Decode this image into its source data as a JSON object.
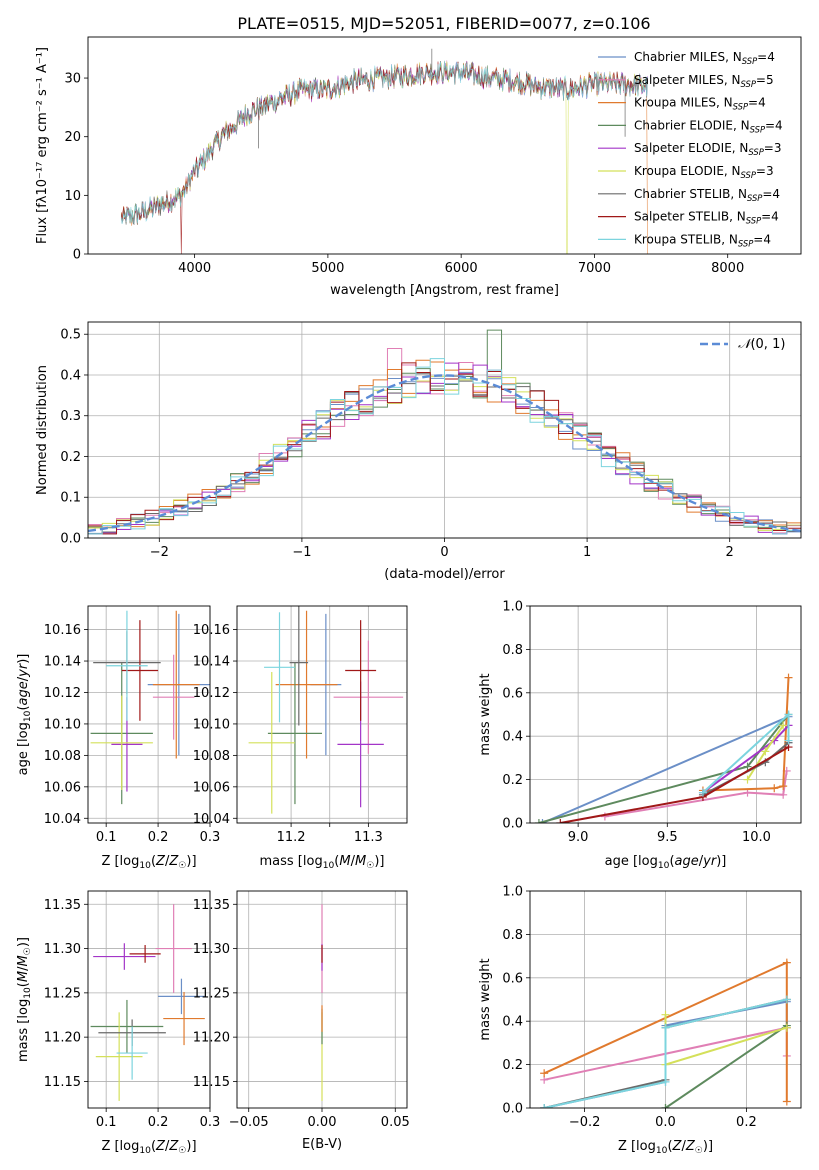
{
  "title": "PLATE=0515, MJD=52051, FIBERID=0077, z=0.106",
  "colors": {
    "Chabrier MILES": "#6b8fc7",
    "Salpeter MILES": "#e07fb5",
    "Kroupa MILES": "#e07a2e",
    "Chabrier ELODIE": "#5e8a5e",
    "Salpeter ELODIE": "#a335c8",
    "Kroupa ELODIE": "#d4e05a",
    "Chabrier STELIB": "#6a6a6a",
    "Salpeter STELIB": "#a01818",
    "Kroupa STELIB": "#7cd4de",
    "normal": "#5b8bd6"
  },
  "chart_data": [
    {
      "id": "spectrum",
      "type": "line",
      "xlabel": "wavelength [Angstrom, rest frame]",
      "ylabel": "Flux [fλ10⁻¹⁷ erg cm⁻² s⁻¹ A⁻¹]",
      "xlim": [
        3200,
        8550
      ],
      "ylim": [
        0,
        37
      ],
      "xticks": [
        4000,
        5000,
        6000,
        7000,
        8000
      ],
      "yticks": [
        0,
        10,
        20,
        30
      ],
      "legend_position": "top-right",
      "series": [
        {
          "name": "Chabrier MILES, N_SSP=4"
        },
        {
          "name": "Salpeter MILES, N_SSP=5"
        },
        {
          "name": "Kroupa MILES, N_SSP=4"
        },
        {
          "name": "Chabrier ELODIE, N_SSP=4"
        },
        {
          "name": "Salpeter ELODIE, N_SSP=3"
        },
        {
          "name": "Kroupa ELODIE, N_SSP=3"
        },
        {
          "name": "Chabrier STELIB, N_SSP=4"
        },
        {
          "name": "Salpeter STELIB, N_SSP=4"
        },
        {
          "name": "Kroupa STELIB, N_SSP=4"
        }
      ],
      "continuum": {
        "x": [
          3450,
          3600,
          3800,
          3900,
          4000,
          4200,
          4400,
          4600,
          4800,
          5000,
          5200,
          5400,
          5600,
          5800,
          6000,
          6200,
          6400,
          6600,
          6800,
          7000,
          7200,
          7400
        ],
        "y": [
          6,
          7,
          9,
          10,
          14,
          20,
          24,
          26,
          28,
          28,
          29.5,
          30,
          30.5,
          31,
          31,
          30,
          29.5,
          28.5,
          28,
          29,
          29,
          28.5
        ]
      }
    },
    {
      "id": "residuals",
      "type": "line",
      "xlabel": "(data-model)/error",
      "ylabel": "Normed distribution",
      "xlim": [
        -2.5,
        2.5
      ],
      "ylim": [
        0,
        0.53
      ],
      "xticks": [
        -2,
        -1,
        0,
        1,
        2
      ],
      "yticks": [
        0.0,
        0.1,
        0.2,
        0.3,
        0.4,
        0.5
      ],
      "legend": "N(0,1)",
      "legend_position": "top-right",
      "bin_width": 0.1,
      "bin_start": -2.5
    },
    {
      "id": "age-vs-Z",
      "type": "scatter",
      "xlabel": "Z [log10(Z/Z☉)]",
      "ylabel": "age  [log10(age/yr)]",
      "xlim": [
        0.065,
        0.3
      ],
      "ylim": [
        10.037,
        10.175
      ],
      "xticks": [
        0.1,
        0.2,
        0.3
      ],
      "yticks": [
        10.04,
        10.06,
        10.08,
        10.1,
        10.12,
        10.14,
        10.16
      ],
      "points": [
        {
          "series": "Chabrier MILES",
          "x": 0.24,
          "y": 10.125,
          "xerr": 0.06,
          "yerr": 0.045
        },
        {
          "series": "Salpeter MILES",
          "x": 0.23,
          "y": 10.117,
          "xerr": 0.04,
          "yerr": 0.027
        },
        {
          "series": "Kroupa MILES",
          "x": 0.235,
          "y": 10.125,
          "xerr": 0.045,
          "yerr": 0.047
        },
        {
          "series": "Chabrier ELODIE",
          "x": 0.13,
          "y": 10.094,
          "xerr": 0.06,
          "yerr": 0.045
        },
        {
          "series": "Salpeter ELODIE",
          "x": 0.14,
          "y": 10.087,
          "xerr": 0.03,
          "yerr": 0.03
        },
        {
          "series": "Kroupa ELODIE",
          "x": 0.13,
          "y": 10.088,
          "xerr": 0.06,
          "yerr": 0.03
        },
        {
          "series": "Chabrier STELIB",
          "x": 0.14,
          "y": 10.139,
          "xerr": 0.065,
          "yerr": 0.02
        },
        {
          "series": "Salpeter STELIB",
          "x": 0.165,
          "y": 10.134,
          "xerr": 0.035,
          "yerr": 0.032
        },
        {
          "series": "Kroupa STELIB",
          "x": 0.14,
          "y": 10.137,
          "xerr": 0.04,
          "yerr": 0.035
        }
      ]
    },
    {
      "id": "age-vs-mass",
      "type": "scatter",
      "xlabel": "mass [log10(M/M☉)]",
      "ylabel": "",
      "xlim": [
        11.13,
        11.35
      ],
      "ylim": [
        10.037,
        10.175
      ],
      "xticks": [
        11.2,
        11.25,
        11.3
      ],
      "xticklabels": [
        "11.2",
        "",
        "11.3"
      ],
      "yticks": [
        10.04,
        10.06,
        10.08,
        10.1,
        10.12,
        10.14,
        10.16
      ],
      "points": [
        {
          "series": "Chabrier MILES",
          "x": 11.245,
          "y": 10.125,
          "xerr": 0.02,
          "yerr": 0.045
        },
        {
          "series": "Salpeter MILES",
          "x": 11.3,
          "y": 10.117,
          "xerr": 0.045,
          "yerr": 0.036
        },
        {
          "series": "Kroupa MILES",
          "x": 11.22,
          "y": 10.125,
          "xerr": 0.04,
          "yerr": 0.047
        },
        {
          "series": "Chabrier ELODIE",
          "x": 11.205,
          "y": 10.094,
          "xerr": 0.035,
          "yerr": 0.045
        },
        {
          "series": "Salpeter ELODIE",
          "x": 11.29,
          "y": 10.087,
          "xerr": 0.03,
          "yerr": 0.04
        },
        {
          "series": "Kroupa ELODIE",
          "x": 11.175,
          "y": 10.088,
          "xerr": 0.03,
          "yerr": 0.045
        },
        {
          "series": "Chabrier STELIB",
          "x": 11.21,
          "y": 10.139,
          "xerr": 0.012,
          "yerr": 0.04
        },
        {
          "series": "Salpeter STELIB",
          "x": 11.29,
          "y": 10.134,
          "xerr": 0.02,
          "yerr": 0.032
        },
        {
          "series": "Kroupa STELIB",
          "x": 11.185,
          "y": 10.136,
          "xerr": 0.02,
          "yerr": 0.035
        }
      ]
    },
    {
      "id": "mass-weight-vs-age",
      "type": "line",
      "xlabel": "age  [log10(age/yr)]",
      "ylabel": "mass weight",
      "xlim": [
        8.73,
        10.25
      ],
      "ylim": [
        0,
        1.0
      ],
      "xticks": [
        9.0,
        9.5,
        10.0
      ],
      "yticks": [
        0.0,
        0.2,
        0.4,
        0.6,
        0.8,
        1.0
      ],
      "series": [
        {
          "color_key": "Chabrier MILES",
          "x": [
            8.8,
            10.18,
            10.18
          ],
          "y": [
            0.0,
            0.49,
            0.37
          ]
        },
        {
          "color_key": "Salpeter MILES",
          "x": [
            9.15,
            9.95,
            10.15,
            10.17
          ],
          "y": [
            0.03,
            0.14,
            0.13,
            0.24
          ]
        },
        {
          "color_key": "Kroupa MILES",
          "x": [
            9.7,
            10.1,
            10.15,
            10.18
          ],
          "y": [
            0.15,
            0.16,
            0.17,
            0.67
          ]
        },
        {
          "color_key": "Chabrier ELODIE",
          "x": [
            8.78,
            9.95,
            10.18
          ],
          "y": [
            0.0,
            0.26,
            0.5
          ]
        },
        {
          "color_key": "Salpeter ELODIE",
          "x": [
            9.7,
            10.1,
            10.18
          ],
          "y": [
            0.14,
            0.38,
            0.45
          ]
        },
        {
          "color_key": "Kroupa ELODIE",
          "x": [
            9.95,
            10.05,
            10.15
          ],
          "y": [
            0.2,
            0.33,
            0.45
          ]
        },
        {
          "color_key": "Chabrier STELIB",
          "x": [
            9.7,
            10.05,
            10.18
          ],
          "y": [
            0.13,
            0.28,
            0.37
          ]
        },
        {
          "color_key": "Salpeter STELIB",
          "x": [
            8.9,
            9.7,
            10.18
          ],
          "y": [
            0.0,
            0.12,
            0.35
          ]
        },
        {
          "color_key": "Kroupa STELIB",
          "x": [
            9.7,
            10.18,
            10.18
          ],
          "y": [
            0.14,
            0.5,
            0.38
          ]
        }
      ]
    },
    {
      "id": "mass-vs-Z",
      "type": "scatter",
      "xlabel": "Z [log10(Z/Z☉)]",
      "ylabel": "mass [log10(M/M☉)]",
      "xlim": [
        0.065,
        0.3
      ],
      "ylim": [
        11.12,
        11.365
      ],
      "xticks": [
        0.1,
        0.2,
        0.3
      ],
      "yticks": [
        11.15,
        11.2,
        11.25,
        11.3,
        11.35
      ],
      "points": [
        {
          "series": "Chabrier MILES",
          "x": 0.245,
          "y": 11.246,
          "xerr": 0.045,
          "yerr": 0.02
        },
        {
          "series": "Salpeter MILES",
          "x": 0.23,
          "y": 11.3,
          "xerr": 0.035,
          "yerr": 0.05
        },
        {
          "series": "Kroupa MILES",
          "x": 0.25,
          "y": 11.221,
          "xerr": 0.04,
          "yerr": 0.03
        },
        {
          "series": "Chabrier ELODIE",
          "x": 0.14,
          "y": 11.212,
          "xerr": 0.07,
          "yerr": 0.03
        },
        {
          "series": "Salpeter ELODIE",
          "x": 0.135,
          "y": 11.291,
          "xerr": 0.06,
          "yerr": 0.015
        },
        {
          "series": "Kroupa ELODIE",
          "x": 0.125,
          "y": 11.178,
          "xerr": 0.045,
          "yerr": 0.05
        },
        {
          "series": "Chabrier STELIB",
          "x": 0.15,
          "y": 11.205,
          "xerr": 0.065,
          "yerr": 0.015
        },
        {
          "series": "Salpeter STELIB",
          "x": 0.175,
          "y": 11.294,
          "xerr": 0.03,
          "yerr": 0.01
        },
        {
          "series": "Kroupa STELIB",
          "x": 0.15,
          "y": 11.182,
          "xerr": 0.03,
          "yerr": 0.03
        }
      ]
    },
    {
      "id": "mass-vs-ebv",
      "type": "scatter",
      "xlabel": "E(B-V)",
      "ylabel": "",
      "xlim": [
        -0.058,
        0.058
      ],
      "ylim": [
        11.12,
        11.365
      ],
      "xticks": [
        -0.05,
        0.0,
        0.05
      ],
      "yticks": [
        11.15,
        11.2,
        11.25,
        11.3,
        11.35
      ],
      "points": [
        {
          "series": "Salpeter MILES",
          "x": 0.0,
          "y": 11.3,
          "xerr": 0,
          "yerr": 0.05
        },
        {
          "series": "Kroupa ELODIE",
          "x": 0.0,
          "y": 11.178,
          "xerr": 0,
          "yerr": 0.05
        },
        {
          "series": "Salpeter ELODIE",
          "x": 0.0,
          "y": 11.29,
          "xerr": 0,
          "yerr": 0.015
        },
        {
          "series": "Chabrier ELODIE",
          "x": 0.0,
          "y": 11.212,
          "xerr": 0,
          "yerr": 0.02
        },
        {
          "series": "Salpeter STELIB",
          "x": 0.0,
          "y": 11.294,
          "xerr": 0,
          "yerr": 0.01
        },
        {
          "series": "Kroupa MILES",
          "x": 0.0,
          "y": 11.221,
          "xerr": 0,
          "yerr": 0.015
        }
      ]
    },
    {
      "id": "mass-weight-vs-Z",
      "type": "line",
      "xlabel": "Z [log10(Z/Z☉)]",
      "ylabel": "mass weight",
      "xlim": [
        -0.335,
        0.335
      ],
      "ylim": [
        0,
        1.0
      ],
      "xticks": [
        -0.2,
        0.0,
        0.2
      ],
      "yticks": [
        0.0,
        0.2,
        0.4,
        0.6,
        0.8,
        1.0
      ],
      "series": [
        {
          "color_key": "Chabrier MILES",
          "x": [
            -0.3,
            0.0,
            0.0,
            0.3,
            0.3
          ],
          "y": [
            0.0,
            0.12,
            0.38,
            0.49,
            0.37
          ]
        },
        {
          "color_key": "Salpeter MILES",
          "x": [
            -0.3,
            0.3,
            0.3
          ],
          "y": [
            0.13,
            0.37,
            0.24
          ]
        },
        {
          "color_key": "Kroupa MILES",
          "x": [
            -0.3,
            0.3,
            0.3
          ],
          "y": [
            0.16,
            0.67,
            0.03
          ]
        },
        {
          "color_key": "Chabrier ELODIE",
          "x": [
            0.0,
            0.0,
            0.3
          ],
          "y": [
            0.0,
            0.0,
            0.38
          ]
        },
        {
          "color_key": "Kroupa ELODIE",
          "x": [
            0.0,
            0.0,
            0.3
          ],
          "y": [
            0.43,
            0.2,
            0.37
          ]
        },
        {
          "color_key": "Chabrier STELIB",
          "x": [
            -0.3,
            0.0,
            0.0,
            0.3
          ],
          "y": [
            0.0,
            0.13,
            0.37,
            0.5
          ]
        },
        {
          "color_key": "Kroupa STELIB",
          "x": [
            -0.3,
            0.0,
            0.0,
            0.3
          ],
          "y": [
            0.0,
            0.12,
            0.37,
            0.5
          ]
        }
      ]
    }
  ]
}
